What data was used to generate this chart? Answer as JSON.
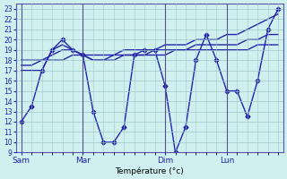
{
  "background_color": "#d0f0f0",
  "grid_color": "#a0c8c8",
  "line_color": "#2222aa",
  "title": "Température (°c)",
  "ylabel_ticks": [
    9,
    10,
    11,
    12,
    13,
    14,
    15,
    16,
    17,
    18,
    19,
    20,
    21,
    22,
    23
  ],
  "ylim": [
    9,
    23.5
  ],
  "day_labels": [
    "Sam",
    "Mar",
    "Dim",
    "Lun"
  ],
  "day_positions": [
    0,
    6,
    14,
    20
  ],
  "num_points": 26,
  "series1": [
    12,
    13.5,
    17,
    19,
    20,
    19,
    18.5,
    13,
    10,
    10,
    11.5,
    18.5,
    19,
    19,
    15.5,
    9,
    11.5,
    18,
    20.5,
    18,
    15,
    15,
    12.5,
    16,
    21,
    23
  ],
  "series2": [
    17,
    17,
    17,
    19,
    19.5,
    19,
    18.5,
    18,
    18,
    18.5,
    19,
    19,
    19,
    19,
    19.5,
    19.5,
    19.5,
    20,
    20,
    20,
    20.5,
    20.5,
    21,
    21.5,
    22,
    22.5
  ],
  "series3": [
    17.5,
    17.5,
    18,
    18.5,
    19,
    19,
    18.5,
    18,
    18,
    18,
    18.5,
    18.5,
    18.5,
    19,
    19,
    19,
    19,
    19.5,
    19.5,
    19.5,
    19.5,
    19.5,
    20,
    20,
    20.5,
    20.5
  ],
  "series4": [
    18,
    18,
    18,
    18,
    18,
    18.5,
    18.5,
    18.5,
    18.5,
    18.5,
    18.5,
    18.5,
    18.5,
    18.5,
    18.5,
    19,
    19,
    19,
    19,
    19,
    19,
    19,
    19,
    19.5,
    19.5,
    19.5
  ]
}
